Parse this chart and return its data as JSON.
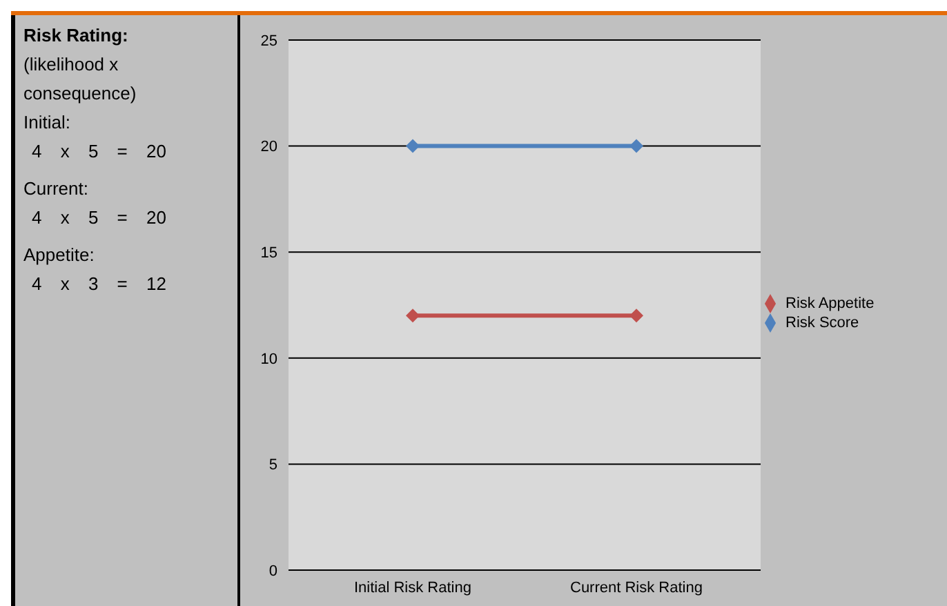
{
  "chart_data": {
    "type": "line",
    "categories": [
      "Initial Risk Rating",
      "Current Risk Rating"
    ],
    "series": [
      {
        "name": "Risk Score",
        "color": "#4f81bd",
        "values": [
          20,
          20
        ]
      },
      {
        "name": "Risk Appetite",
        "color": "#c0504d",
        "values": [
          12,
          12
        ]
      }
    ],
    "ylim": [
      0,
      25
    ],
    "yticks": [
      0,
      5,
      10,
      15,
      20,
      25
    ],
    "grid": "y",
    "legend": "right",
    "marker": "diamond",
    "line_style": "solid",
    "annotations": [
      "Risk Rating:",
      "(likelihood x consequence)",
      "Initial:",
      "4 x 5 = 20",
      "Current:",
      "4 x 5 = 20",
      "Appetite:",
      "4 x 3 = 12"
    ]
  }
}
